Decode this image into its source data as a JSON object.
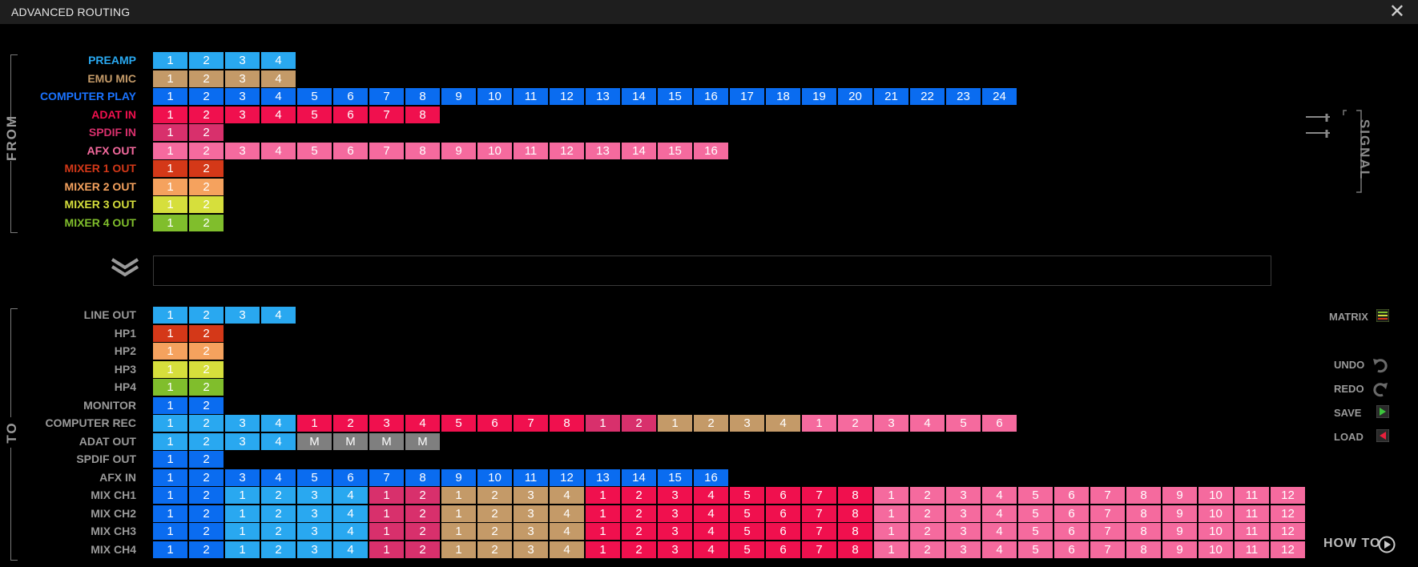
{
  "window": {
    "title": "ADVANCED ROUTING",
    "close": "✕"
  },
  "sections": {
    "from": "FROM",
    "to": "TO"
  },
  "side": {
    "signal": "SIGNAL",
    "matrix": "MATRIX",
    "undo": "UNDO",
    "redo": "REDO",
    "save": "SAVE",
    "load": "LOAD",
    "howto": "HOW TO"
  },
  "colors": {
    "preamp": "#29a8f0",
    "emu": "#c49a68",
    "computer": "#0a6cf0",
    "adat": "#f0104e",
    "spdif": "#d8306c",
    "afx": "#f56a9e",
    "mixer1": "#d43818",
    "mixer2": "#f5a25e",
    "mixer3": "#d6df3c",
    "mixer4": "#80be2c",
    "muted": "#7f7f7f",
    "dest_label": "#9a9a9a"
  },
  "from_rows": [
    {
      "label": "PREAMP",
      "labelColor": "#29a8f0",
      "segments": [
        {
          "color": "preamp",
          "count": 4
        }
      ]
    },
    {
      "label": "EMU MIC",
      "labelColor": "#c49a68",
      "segments": [
        {
          "color": "emu",
          "count": 4
        }
      ]
    },
    {
      "label": "COMPUTER PLAY",
      "labelColor": "#1a73ff",
      "segments": [
        {
          "color": "computer",
          "count": 24
        }
      ]
    },
    {
      "label": "ADAT IN",
      "labelColor": "#f0104e",
      "segments": [
        {
          "color": "adat",
          "count": 8
        }
      ]
    },
    {
      "label": "SPDIF IN",
      "labelColor": "#d8306c",
      "segments": [
        {
          "color": "spdif",
          "count": 2
        }
      ]
    },
    {
      "label": "AFX OUT",
      "labelColor": "#f56a9e",
      "segments": [
        {
          "color": "afx",
          "count": 16
        }
      ]
    },
    {
      "label": "MIXER 1 OUT",
      "labelColor": "#d43818",
      "segments": [
        {
          "color": "mixer1",
          "count": 2
        }
      ]
    },
    {
      "label": "MIXER 2 OUT",
      "labelColor": "#f5a25e",
      "segments": [
        {
          "color": "mixer2",
          "count": 2
        }
      ]
    },
    {
      "label": "MIXER 3 OUT",
      "labelColor": "#d6df3c",
      "segments": [
        {
          "color": "mixer3",
          "count": 2
        }
      ]
    },
    {
      "label": "MIXER 4 OUT",
      "labelColor": "#80be2c",
      "segments": [
        {
          "color": "mixer4",
          "count": 2
        }
      ]
    }
  ],
  "to_rows": [
    {
      "label": "LINE OUT",
      "segments": [
        {
          "color": "preamp",
          "count": 4
        }
      ]
    },
    {
      "label": "HP1",
      "segments": [
        {
          "color": "mixer1",
          "count": 2
        }
      ]
    },
    {
      "label": "HP2",
      "segments": [
        {
          "color": "mixer2",
          "count": 2
        }
      ]
    },
    {
      "label": "HP3",
      "segments": [
        {
          "color": "mixer3",
          "count": 2
        }
      ]
    },
    {
      "label": "HP4",
      "segments": [
        {
          "color": "mixer4",
          "count": 2
        }
      ]
    },
    {
      "label": "MONITOR",
      "segments": [
        {
          "color": "computer",
          "count": 2
        }
      ]
    },
    {
      "label": "COMPUTER REC",
      "segments": [
        {
          "color": "preamp",
          "count": 4
        },
        {
          "color": "adat",
          "count": 8
        },
        {
          "color": "spdif",
          "count": 2
        },
        {
          "color": "emu",
          "count": 4
        },
        {
          "color": "afx",
          "count": 6
        }
      ]
    },
    {
      "label": "ADAT OUT",
      "segments": [
        {
          "color": "preamp",
          "count": 4
        },
        {
          "color": "muted",
          "count": 4,
          "text": "M"
        }
      ]
    },
    {
      "label": "SPDIF OUT",
      "segments": [
        {
          "color": "computer",
          "count": 2
        }
      ]
    },
    {
      "label": "AFX IN",
      "segments": [
        {
          "color": "computer",
          "count": 16
        }
      ]
    },
    {
      "label": "MIX CH1",
      "segments": [
        {
          "color": "computer",
          "count": 2
        },
        {
          "color": "preamp",
          "count": 4
        },
        {
          "color": "spdif",
          "count": 2
        },
        {
          "color": "emu",
          "count": 4
        },
        {
          "color": "adat",
          "count": 8
        },
        {
          "color": "afx",
          "count": 12
        }
      ]
    },
    {
      "label": "MIX CH2",
      "segments": [
        {
          "color": "computer",
          "count": 2
        },
        {
          "color": "preamp",
          "count": 4
        },
        {
          "color": "spdif",
          "count": 2
        },
        {
          "color": "emu",
          "count": 4
        },
        {
          "color": "adat",
          "count": 8
        },
        {
          "color": "afx",
          "count": 12
        }
      ]
    },
    {
      "label": "MIX CH3",
      "segments": [
        {
          "color": "computer",
          "count": 2
        },
        {
          "color": "preamp",
          "count": 4
        },
        {
          "color": "spdif",
          "count": 2
        },
        {
          "color": "emu",
          "count": 4
        },
        {
          "color": "adat",
          "count": 8
        },
        {
          "color": "afx",
          "count": 12
        }
      ]
    },
    {
      "label": "MIX CH4",
      "segments": [
        {
          "color": "computer",
          "count": 2
        },
        {
          "color": "preamp",
          "count": 4
        },
        {
          "color": "spdif",
          "count": 2
        },
        {
          "color": "emu",
          "count": 4
        },
        {
          "color": "adat",
          "count": 8
        },
        {
          "color": "afx",
          "count": 12
        }
      ]
    }
  ]
}
